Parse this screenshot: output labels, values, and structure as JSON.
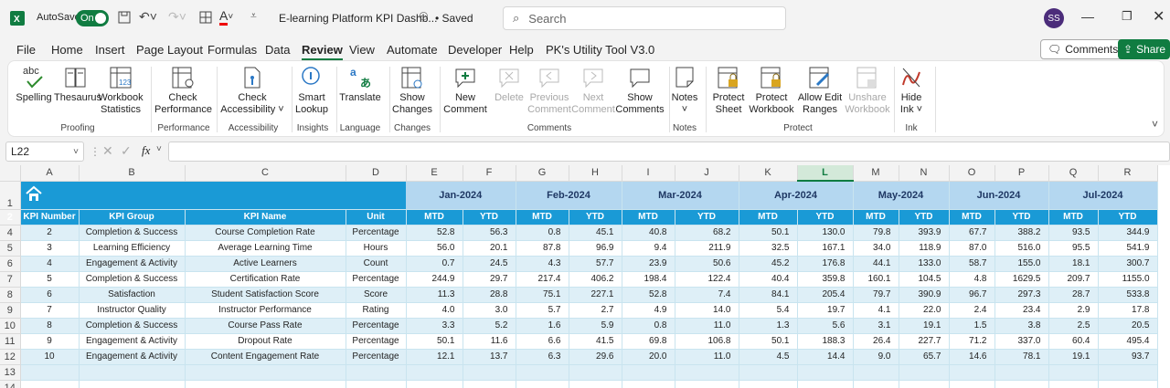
{
  "titlebar": {
    "autosave_label": "AutoSave",
    "autosave_state": "On",
    "file_title": "E-learning Platform KPI Dashb...",
    "saved_status": "• Saved",
    "search_placeholder": "Search",
    "user_initials": "SS"
  },
  "menu": [
    "File",
    "Home",
    "Insert",
    "Page Layout",
    "Formulas",
    "Data",
    "Review",
    "View",
    "Automate",
    "Developer",
    "Help",
    "PK's Utility Tool V3.0"
  ],
  "menu_active": "Review",
  "comments_button": "Comments",
  "share_button": "Share",
  "ribbon": {
    "spelling": "Spelling",
    "thesaurus": "Thesaurus",
    "workbook_statistics_1": "Workbook",
    "workbook_statistics_2": "Statistics",
    "group_proofing": "Proofing",
    "check_performance_1": "Check",
    "check_performance_2": "Performance",
    "group_performance": "Performance",
    "check_accessibility_1": "Check",
    "check_accessibility_2": "Accessibility ˅",
    "group_accessibility": "Accessibility",
    "smart_lookup_1": "Smart",
    "smart_lookup_2": "Lookup",
    "group_insights": "Insights",
    "translate": "Translate",
    "group_language": "Language",
    "show_changes_1": "Show",
    "show_changes_2": "Changes",
    "group_changes": "Changes",
    "new_comment_1": "New",
    "new_comment_2": "Comment",
    "delete": "Delete",
    "previous_comment_1": "Previous",
    "previous_comment_2": "Comment",
    "next_comment_1": "Next",
    "next_comment_2": "Comment",
    "show_comments_1": "Show",
    "show_comments_2": "Comments",
    "group_comments": "Comments",
    "notes": "Notes",
    "notes_caret": "˅",
    "group_notes": "Notes",
    "protect_sheet_1": "Protect",
    "protect_sheet_2": "Sheet",
    "protect_workbook_1": "Protect",
    "protect_workbook_2": "Workbook",
    "allow_edit_1": "Allow Edit",
    "allow_edit_2": "Ranges",
    "unshare_1": "Unshare",
    "unshare_2": "Workbook",
    "group_protect": "Protect",
    "hide_ink_1": "Hide",
    "hide_ink_2": "Ink ˅",
    "group_ink": "Ink"
  },
  "formula_bar": {
    "name_box": "L22",
    "fx": "fx",
    "value": ""
  },
  "columns": [
    "A",
    "B",
    "C",
    "D",
    "E",
    "F",
    "G",
    "H",
    "I",
    "J",
    "K",
    "L",
    "M",
    "N",
    "O",
    "P",
    "Q",
    "R"
  ],
  "selected_column": "L",
  "rows": [
    "1",
    "2",
    "4",
    "5",
    "6",
    "7",
    "8",
    "9",
    "10",
    "11",
    "12",
    "13",
    "14"
  ],
  "headers": [
    "KPI Number",
    "KPI Group",
    "KPI Name",
    "Unit"
  ],
  "months": [
    "Jan-2024",
    "Feb-2024",
    "Mar-2024",
    "Apr-2024",
    "May-2024",
    "Jun-2024",
    "Jul-2024"
  ],
  "mtd": "MTD",
  "ytd": "YTD",
  "data": [
    [
      "2",
      "Completion & Success",
      "Course Completion Rate",
      "Percentage",
      "52.8",
      "56.3",
      "0.8",
      "45.1",
      "40.8",
      "68.2",
      "50.1",
      "130.0",
      "79.8",
      "393.9",
      "67.7",
      "388.2",
      "93.5",
      "344.9"
    ],
    [
      "3",
      "Learning Efficiency",
      "Average Learning Time",
      "Hours",
      "56.0",
      "20.1",
      "87.8",
      "96.9",
      "9.4",
      "211.9",
      "32.5",
      "167.1",
      "34.0",
      "118.9",
      "87.0",
      "516.0",
      "95.5",
      "541.9"
    ],
    [
      "4",
      "Engagement & Activity",
      "Active Learners",
      "Count",
      "0.7",
      "24.5",
      "4.3",
      "57.7",
      "23.9",
      "50.6",
      "45.2",
      "176.8",
      "44.1",
      "133.0",
      "58.7",
      "155.0",
      "18.1",
      "300.7"
    ],
    [
      "5",
      "Completion & Success",
      "Certification Rate",
      "Percentage",
      "244.9",
      "29.7",
      "217.4",
      "406.2",
      "198.4",
      "122.4",
      "40.4",
      "359.8",
      "160.1",
      "104.5",
      "4.8",
      "1629.5",
      "209.7",
      "1155.0"
    ],
    [
      "6",
      "Satisfaction",
      "Student Satisfaction Score",
      "Score",
      "11.3",
      "28.8",
      "75.1",
      "227.1",
      "52.8",
      "7.4",
      "84.1",
      "205.4",
      "79.7",
      "390.9",
      "96.7",
      "297.3",
      "28.7",
      "533.8"
    ],
    [
      "7",
      "Instructor Quality",
      "Instructor Performance",
      "Rating",
      "4.0",
      "3.0",
      "5.7",
      "2.7",
      "4.9",
      "14.0",
      "5.4",
      "19.7",
      "4.1",
      "22.0",
      "2.4",
      "23.4",
      "2.9",
      "17.8"
    ],
    [
      "8",
      "Completion & Success",
      "Course Pass Rate",
      "Percentage",
      "3.3",
      "5.2",
      "1.6",
      "5.9",
      "0.8",
      "11.0",
      "1.3",
      "5.6",
      "3.1",
      "19.1",
      "1.5",
      "3.8",
      "2.5",
      "20.5"
    ],
    [
      "9",
      "Engagement & Activity",
      "Dropout Rate",
      "Percentage",
      "50.1",
      "11.6",
      "6.6",
      "41.5",
      "69.8",
      "106.8",
      "50.1",
      "188.3",
      "26.4",
      "227.7",
      "71.2",
      "337.0",
      "60.4",
      "495.4"
    ],
    [
      "10",
      "Engagement & Activity",
      "Content Engagement Rate",
      "Percentage",
      "12.1",
      "13.7",
      "6.3",
      "29.6",
      "20.0",
      "11.0",
      "4.5",
      "14.4",
      "9.0",
      "65.7",
      "14.6",
      "78.1",
      "19.1",
      "93.7"
    ]
  ]
}
